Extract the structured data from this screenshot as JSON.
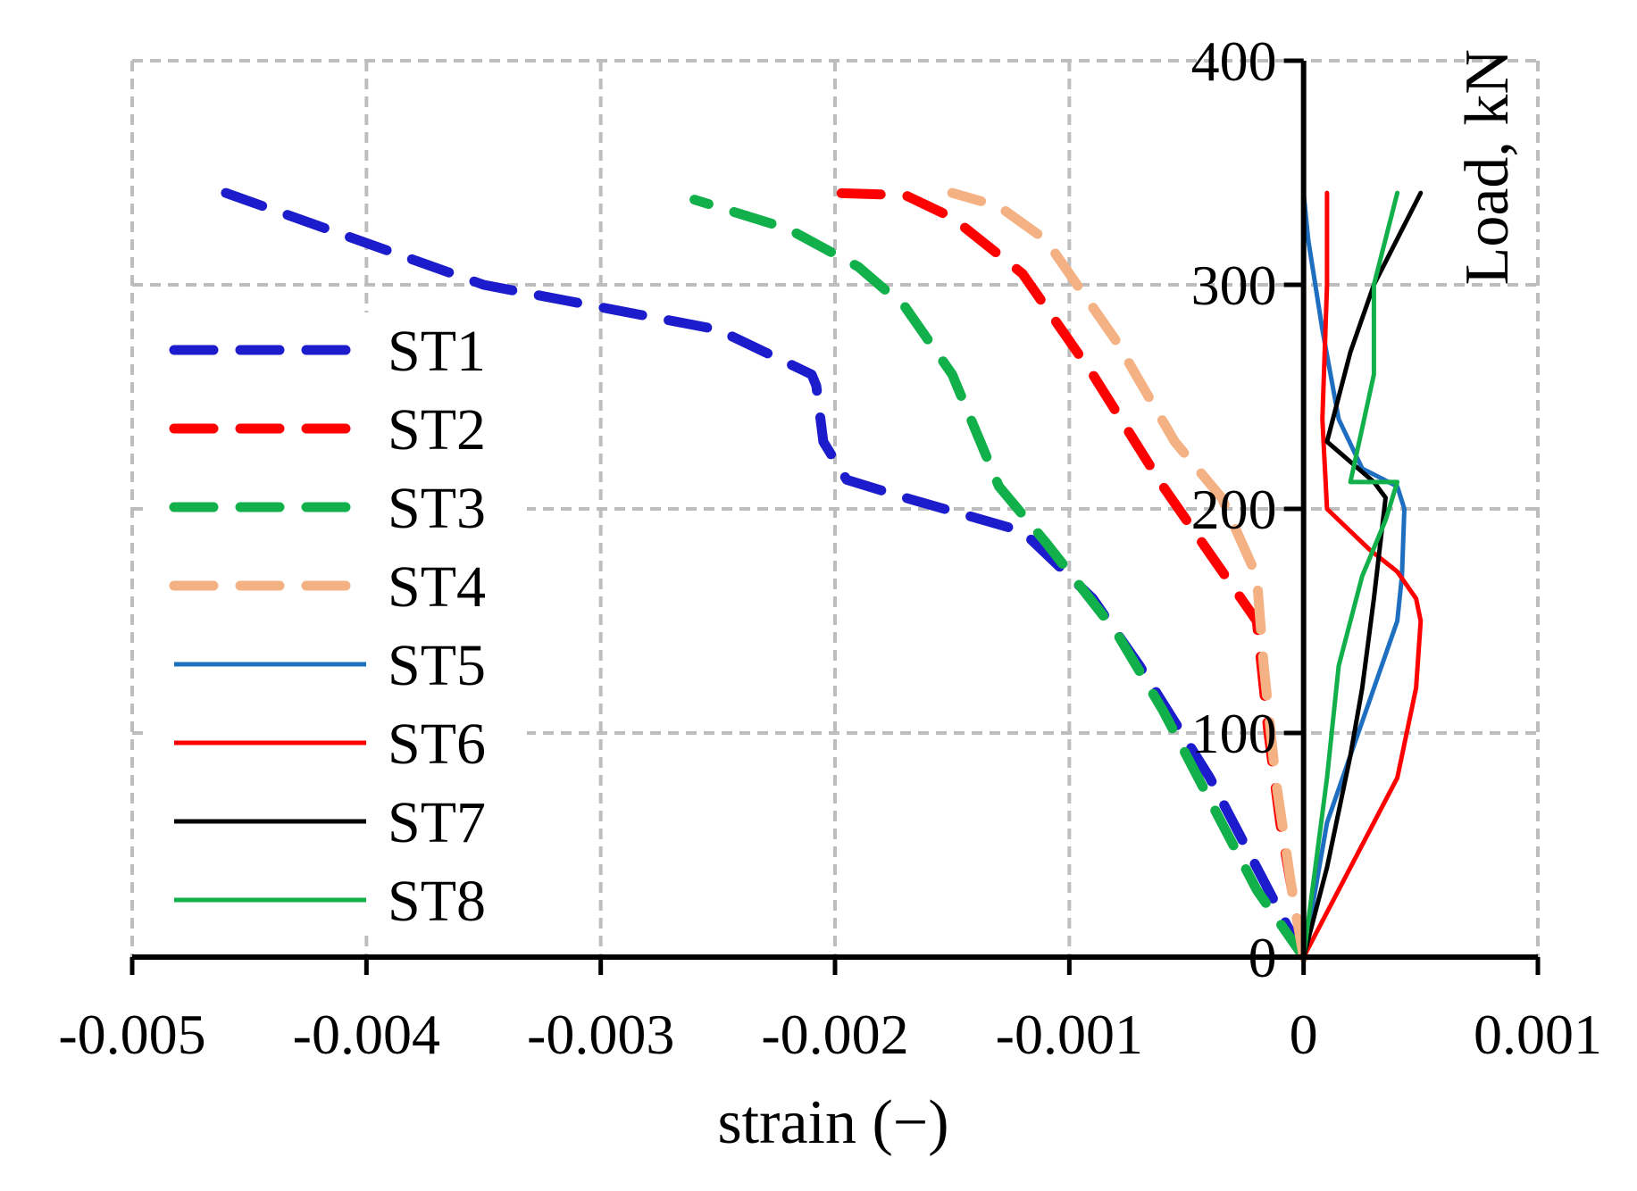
{
  "chart_data": {
    "type": "line",
    "title": "",
    "xlabel": "strain (−)",
    "ylabel": "Load, kN",
    "xlim": [
      -0.005,
      0.001
    ],
    "ylim": [
      0,
      400
    ],
    "x_ticks": [
      {
        "value": -0.005,
        "label": "-0.005"
      },
      {
        "value": -0.004,
        "label": "-0.004"
      },
      {
        "value": -0.003,
        "label": "-0.003"
      },
      {
        "value": -0.002,
        "label": "-0.002"
      },
      {
        "value": -0.001,
        "label": "-0.001"
      },
      {
        "value": 0,
        "label": "0"
      },
      {
        "value": 0.001,
        "label": "0.001"
      }
    ],
    "y_ticks": [
      {
        "value": 0,
        "label": "0"
      },
      {
        "value": 100,
        "label": "100"
      },
      {
        "value": 200,
        "label": "200"
      },
      {
        "value": 300,
        "label": "300"
      },
      {
        "value": 400,
        "label": "400"
      }
    ],
    "grid": true,
    "legend_position": "left",
    "series": [
      {
        "name": "ST1",
        "color": "#1c1ccc",
        "style": "dashed",
        "points": [
          [
            0,
            0
          ],
          [
            -0.00015,
            30
          ],
          [
            -0.0004,
            80
          ],
          [
            -0.0007,
            130
          ],
          [
            -0.0009,
            160
          ],
          [
            -0.0012,
            190
          ],
          [
            -0.0014,
            196
          ],
          [
            -0.0017,
            205
          ],
          [
            -0.00195,
            213
          ],
          [
            -0.00205,
            230
          ],
          [
            -0.00208,
            255
          ],
          [
            -0.0021,
            260
          ],
          [
            -0.0025,
            280
          ],
          [
            -0.0035,
            300
          ],
          [
            -0.0046,
            341
          ]
        ]
      },
      {
        "name": "ST2",
        "color": "#ff0000",
        "style": "dashed",
        "points": [
          [
            0,
            0
          ],
          [
            -5e-05,
            30
          ],
          [
            -0.0001,
            60
          ],
          [
            -0.00015,
            100
          ],
          [
            -0.0002,
            150
          ],
          [
            -0.0004,
            180
          ],
          [
            -0.0006,
            210
          ],
          [
            -0.0009,
            260
          ],
          [
            -0.0012,
            305
          ],
          [
            -0.0015,
            330
          ],
          [
            -0.0017,
            340
          ],
          [
            -0.002,
            341
          ]
        ]
      },
      {
        "name": "ST3",
        "color": "#12b04a",
        "style": "dashed",
        "points": [
          [
            0,
            0
          ],
          [
            -0.0002,
            30
          ],
          [
            -0.0004,
            70
          ],
          [
            -0.0006,
            110
          ],
          [
            -0.0008,
            145
          ],
          [
            -0.0011,
            185
          ],
          [
            -0.0013,
            210
          ],
          [
            -0.0015,
            260
          ],
          [
            -0.0017,
            290
          ],
          [
            -0.0019,
            308
          ],
          [
            -0.0022,
            325
          ],
          [
            -0.0026,
            338
          ]
        ]
      },
      {
        "name": "ST4",
        "color": "#f4b183",
        "style": "dashed",
        "points": [
          [
            0,
            0
          ],
          [
            -5e-05,
            30
          ],
          [
            -0.00012,
            80
          ],
          [
            -0.00017,
            130
          ],
          [
            -0.0002,
            170
          ],
          [
            -0.00035,
            205
          ],
          [
            -0.00055,
            230
          ],
          [
            -0.0008,
            275
          ],
          [
            -0.0011,
            320
          ],
          [
            -0.0013,
            335
          ],
          [
            -0.0015,
            341
          ]
        ]
      },
      {
        "name": "ST5",
        "color": "#1f6fc1",
        "style": "solid",
        "points": [
          [
            0,
            0
          ],
          [
            0.0001,
            60
          ],
          [
            0.0002,
            90
          ],
          [
            0.0003,
            120
          ],
          [
            0.0004,
            150
          ],
          [
            0.00042,
            170
          ],
          [
            0.00043,
            200
          ],
          [
            0.0004,
            210
          ],
          [
            0.00025,
            218
          ],
          [
            0.00015,
            240
          ],
          [
            8e-05,
            280
          ],
          [
            2e-05,
            320
          ],
          [
            0,
            341
          ]
        ]
      },
      {
        "name": "ST6",
        "color": "#ff0000",
        "style": "solid",
        "points": [
          [
            0,
            0
          ],
          [
            0.0002,
            40
          ],
          [
            0.0004,
            80
          ],
          [
            0.00048,
            120
          ],
          [
            0.0005,
            150
          ],
          [
            0.00048,
            160
          ],
          [
            0.0004,
            172
          ],
          [
            0.00028,
            182
          ],
          [
            0.0001,
            200
          ],
          [
            8e-05,
            240
          ],
          [
            0.0001,
            300
          ],
          [
            0.0001,
            341
          ]
        ]
      },
      {
        "name": "ST7",
        "color": "#000000",
        "style": "solid",
        "points": [
          [
            0,
            0
          ],
          [
            0.0001,
            40
          ],
          [
            0.0002,
            90
          ],
          [
            0.00025,
            120
          ],
          [
            0.0003,
            160
          ],
          [
            0.00035,
            205
          ],
          [
            0.0003,
            212
          ],
          [
            0.0001,
            230
          ],
          [
            0.0002,
            270
          ],
          [
            0.0003,
            300
          ],
          [
            0.0005,
            341
          ]
        ]
      },
      {
        "name": "ST8",
        "color": "#12b04a",
        "style": "solid",
        "points": [
          [
            0,
            0
          ],
          [
            5e-05,
            40
          ],
          [
            0.0001,
            80
          ],
          [
            0.00015,
            130
          ],
          [
            0.00025,
            170
          ],
          [
            0.00035,
            195
          ],
          [
            0.0004,
            212
          ],
          [
            0.0002,
            212
          ],
          [
            0.0003,
            260
          ],
          [
            0.0003,
            300
          ],
          [
            0.0004,
            341
          ]
        ]
      }
    ]
  }
}
